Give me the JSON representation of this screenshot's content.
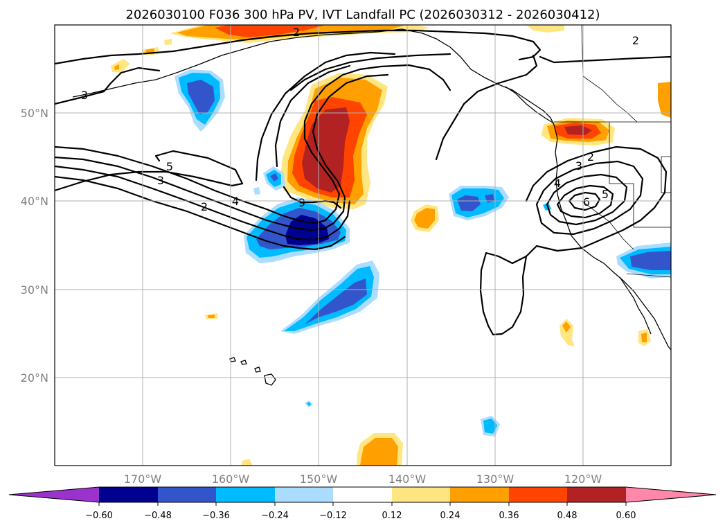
{
  "title": "2026030100 F036 300 hPa PV, IVT Landfall PC (2026030312 - 2026030412)",
  "colors": {
    "n060_below": "#9933cc",
    "n060_n048": "#000090",
    "n048_n036": "#3355cc",
    "n036_n024": "#00bbff",
    "n024_n012": "#aaddff",
    "n012_p012": "#ffffff",
    "p012_p024": "#ffe680",
    "p024_p036": "#ffa000",
    "p036_p048": "#ff4400",
    "p048_p060": "#b22222",
    "p060_above": "#ff88aa"
  },
  "map": {
    "lon_range": [
      -180,
      -110
    ],
    "lat_range": [
      10,
      60
    ],
    "lat_labels": [
      "20°N",
      "30°N",
      "40°N",
      "50°N"
    ],
    "lon_labels": [
      "170°W",
      "160°W",
      "150°W",
      "140°W",
      "130°W",
      "120°W"
    ]
  },
  "colorbar": {
    "tick_labels": [
      "−0.60",
      "−0.48",
      "−0.36",
      "−0.24",
      "−0.12",
      "0.12",
      "0.24",
      "0.36",
      "0.48",
      "0.60"
    ]
  },
  "contour_labels": [
    "2",
    "2",
    "3",
    "5",
    "3",
    "4",
    "2",
    "9",
    "2",
    "3",
    "4",
    "5",
    "6"
  ]
}
